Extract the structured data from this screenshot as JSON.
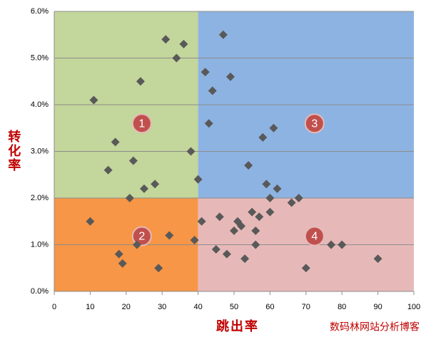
{
  "chart_data": {
    "type": "scatter",
    "x_label": "跳出率",
    "y_label": "转化率",
    "watermark": "数码林网站分析博客",
    "xlim": [
      0,
      100
    ],
    "xticks": [
      0,
      10,
      20,
      30,
      40,
      50,
      60,
      70,
      80,
      90,
      100
    ],
    "ylim": [
      0,
      6
    ],
    "yticks": [
      {
        "value": 0,
        "label": "0.0%"
      },
      {
        "value": 1,
        "label": "1.0%"
      },
      {
        "value": 2,
        "label": "2.0%"
      },
      {
        "value": 3,
        "label": "3.0%"
      },
      {
        "value": 4,
        "label": "4.0%"
      },
      {
        "value": 5,
        "label": "5.0%"
      },
      {
        "value": 6,
        "label": "6.0%"
      }
    ],
    "grid": true,
    "color": "#595959",
    "divider": {
      "x": 40,
      "y": 2
    },
    "quadrants": [
      {
        "label": "1",
        "color": "#c3d69b",
        "side_x": "left",
        "side_y": "top"
      },
      {
        "label": "2",
        "color": "#f79646",
        "side_x": "left",
        "side_y": "bottom"
      },
      {
        "label": "3",
        "color": "#8db3e2",
        "side_x": "right",
        "side_y": "top"
      },
      {
        "label": "4",
        "color": "#e6b9b8",
        "side_x": "right",
        "side_y": "bottom"
      }
    ],
    "x": [
      31,
      36,
      34,
      47,
      42,
      49,
      24,
      44,
      11,
      43,
      61,
      58,
      17,
      38,
      22,
      54,
      15,
      40,
      59,
      28,
      62,
      25,
      21,
      60,
      68,
      66,
      55,
      60,
      46,
      57,
      41,
      10,
      51,
      52,
      50,
      56,
      32,
      39,
      23,
      56,
      77,
      80,
      45,
      18,
      48,
      53,
      90,
      19,
      29,
      70
    ],
    "values": [
      5.4,
      5.3,
      5.0,
      5.5,
      4.7,
      4.6,
      4.5,
      4.3,
      4.1,
      3.6,
      3.5,
      3.3,
      3.2,
      3.0,
      2.8,
      2.7,
      2.6,
      2.4,
      2.3,
      2.3,
      2.2,
      2.2,
      2.0,
      2.0,
      2.0,
      1.9,
      1.7,
      1.7,
      1.6,
      1.6,
      1.5,
      1.5,
      1.5,
      1.4,
      1.3,
      1.3,
      1.2,
      1.1,
      1.0,
      1.0,
      1.0,
      1.0,
      0.9,
      0.8,
      0.8,
      0.7,
      0.7,
      0.6,
      0.5,
      0.5
    ]
  }
}
